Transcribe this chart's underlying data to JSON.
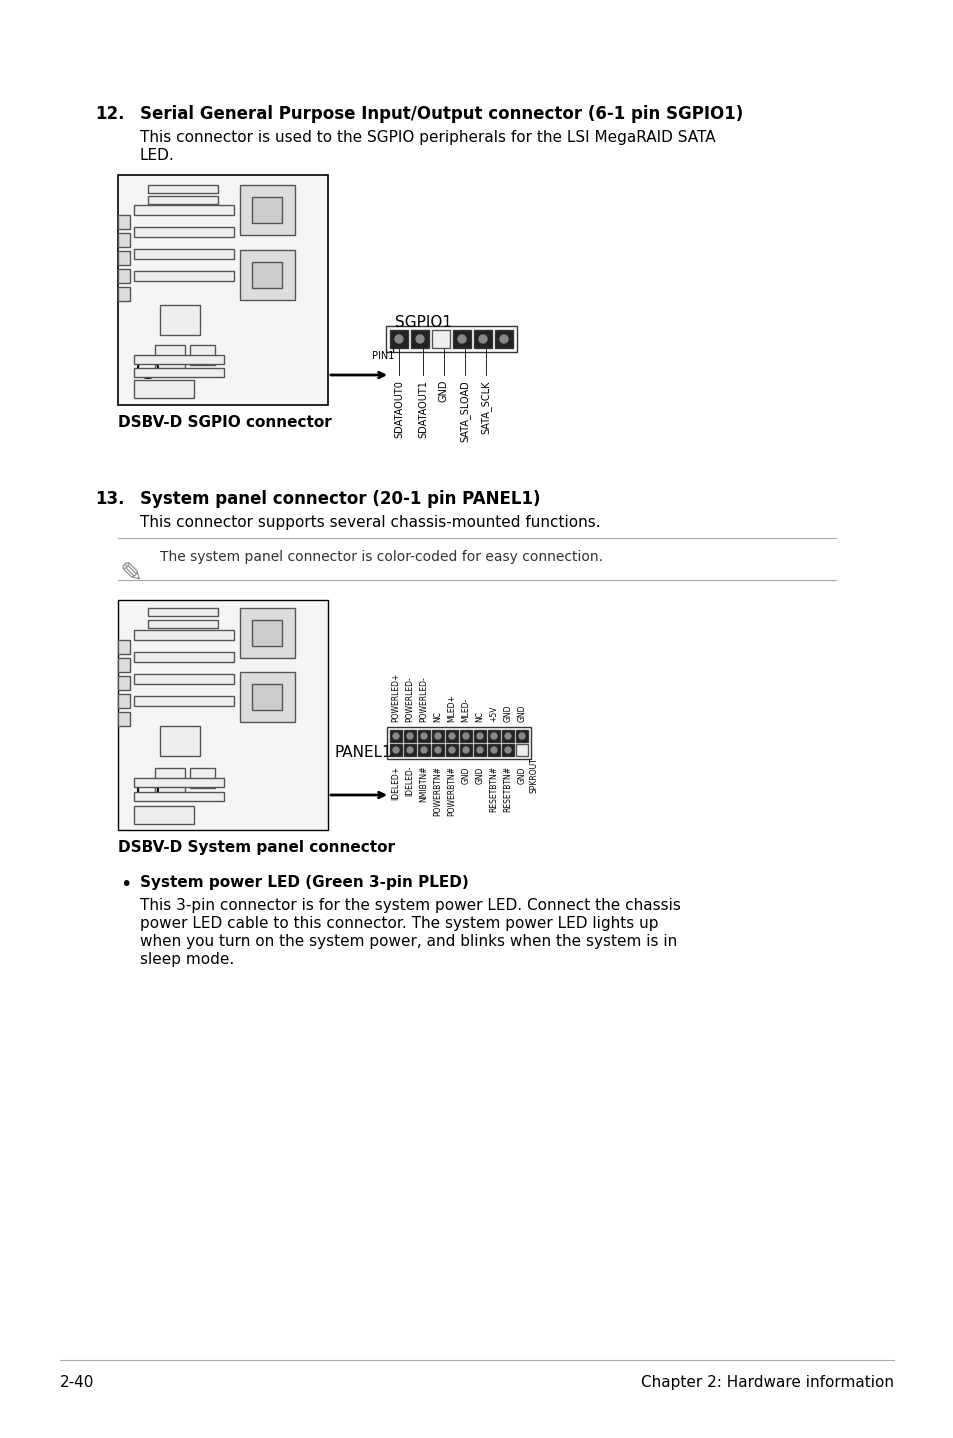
{
  "page_number": "2-40",
  "chapter_text": "Chapter 2: Hardware information",
  "section12_number": "12.",
  "section12_title": "Serial General Purpose Input/Output connector (6-1 pin SGPIO1)",
  "section12_body1": "This connector is used to the SGPIO peripherals for the LSI MegaRAID SATA",
  "section12_body2": "LED.",
  "sgpio_label": "DSBV-D SGPIO connector",
  "sgpio_connector_name": "SGPIO1",
  "sgpio_pin1_label": "PIN1",
  "sgpio_pins": [
    "SDATAOUT0",
    "SDATAOUT1",
    "GND",
    "SATA_SLOAD",
    "SATA_SCLK"
  ],
  "section13_number": "13.",
  "section13_title": "System panel connector (20-1 pin PANEL1)",
  "section13_body": "This connector supports several chassis-mounted functions.",
  "note_text": "The system panel connector is color-coded for easy connection.",
  "panel_label": "DSBV-D System panel connector",
  "panel_connector_name": "PANEL1",
  "panel_pins_top": [
    "IDELED+",
    "IDELED-",
    "NMIBTN#",
    "POWERBTN#",
    "POWERBTN#"
  ],
  "panel_pins_bottom": [
    "POWERLED+",
    "POWERLED-",
    "POWERLED-",
    "NC",
    "MLED+",
    "MLED-",
    "NC",
    "+5V",
    "GND",
    "GND",
    "GND"
  ],
  "panel_right_pins": [
    "RESETBTN#",
    "RESETBTN#",
    "GND",
    "SPKROUT"
  ],
  "bullet_title": "System power LED (Green 3-pin PLED)",
  "bullet_body1": "This 3-pin connector is for the system power LED. Connect the chassis",
  "bullet_body2": "power LED cable to this connector. The system power LED lights up",
  "bullet_body3": "when you turn on the system power, and blinks when the system is in",
  "bullet_body4": "sleep mode.",
  "bg_color": "#ffffff",
  "text_color": "#000000",
  "bold_color": "#000000",
  "line_color": "#cccccc"
}
